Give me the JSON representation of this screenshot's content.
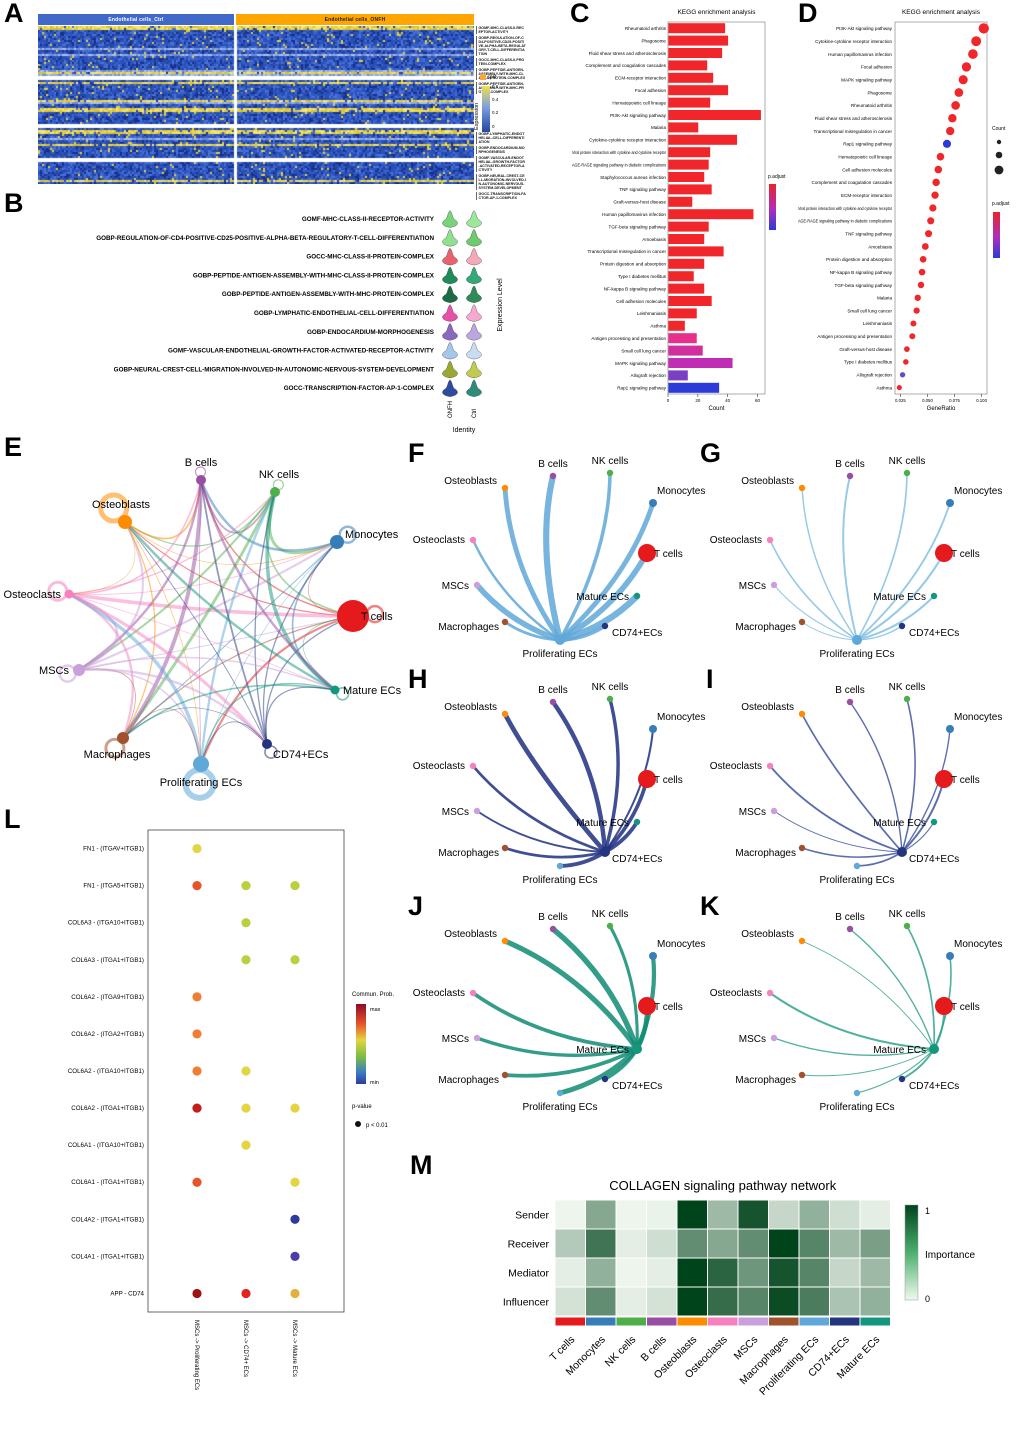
{
  "panel_labels": {
    "A": "A",
    "B": "B",
    "C": "C",
    "D": "D",
    "E": "E",
    "F": "F",
    "G": "G",
    "H": "H",
    "I": "I",
    "J": "J",
    "K": "K",
    "L": "L",
    "M": "M"
  },
  "cell_types": [
    {
      "name": "T cells",
      "color": "#E41A1C"
    },
    {
      "name": "Monocytes",
      "color": "#377EB8"
    },
    {
      "name": "NK cells",
      "color": "#4DAF4A"
    },
    {
      "name": "B cells",
      "color": "#984EA3"
    },
    {
      "name": "Osteoblasts",
      "color": "#FF8C00"
    },
    {
      "name": "Osteoclasts",
      "color": "#F781BF"
    },
    {
      "name": "MSCs",
      "color": "#C9A0DC"
    },
    {
      "name": "Macrophages",
      "color": "#A0522D"
    },
    {
      "name": "Proliferating ECs",
      "color": "#5FA8D8"
    },
    {
      "name": "CD74+ECs",
      "color": "#24357F"
    },
    {
      "name": "Mature ECs",
      "color": "#14967C"
    }
  ],
  "panels": {
    "A": {
      "headers": [
        {
          "label": "Endothelial cells_Ctrl",
          "color": "#4169C8",
          "text": "#FFFFFF"
        },
        {
          "label": "Endothelial cells_ONFH",
          "color": "#FFA500",
          "text": "#222222"
        }
      ],
      "legend": {
        "split": "split",
        "split_color": "#F5A93F",
        "expression": "Expression",
        "ticks": [
          "0.6",
          "0.4",
          "0.2",
          "0"
        ]
      },
      "genesets_top": [
        "GOMF-MHC-CLASS-II-RECEPTOR-ACTIVITY",
        "GOBP-REGULATION-OF-CD4-POSITIVE-CD25-POSITIVE-ALPHA-BETA-REGULATORY-T-CELL-DIFFERENTIATION",
        "GOCC-MHC-CLASS-II-PROTEIN-COMPLEX",
        "GOBP-PEPTIDE-ANTIGEN-ASSEMBLY-WITH-MHC-CLASS-II-PROTEIN-COMPLEX",
        "GOBP-PEPTIDE-ANTIGEN-ASSEMBLY-WITH-MHC-PROTEIN-COMPLEX"
      ],
      "genesets_bottom": [
        "GOBP-LYMPHATIC-ENDOTHELIAL-CELL-DIFFERENTIATION",
        "GOBP-ENDOCARDIUM-MORPHOGENESIS",
        "GOMF-VASCULAR-ENDOTHELIAL-GROWTH-FACTOR-ACTIVATED-RECEPTOR-ACTIVITY",
        "GOBP-NEURAL-CREST-CELL-MIGRATION-INVOLVED-IN-AUTONOMIC-NERVOUS-SYSTEM-DEVELOPMENT",
        "GOCC-TRANSCRIPTION-FACTOR-AP-1-COMPLEX"
      ]
    },
    "B": {
      "ylabel": "Expression Level",
      "xlabel": "Identity",
      "identities": [
        "ONFH",
        "Ctrl"
      ],
      "rows": [
        {
          "term": "GOMF-MHC-CLASS-II-RECEPTOR-ACTIVITY",
          "colors": [
            "#79D379",
            "#9BE89B"
          ]
        },
        {
          "term": "GOBP-REGULATION-OF-CD4-POSITIVE-CD25-POSITIVE-ALPHA-BETA-REGULATORY-T-CELL-DIFFERENTIATION",
          "colors": [
            "#8FE08F",
            "#6FC96F"
          ]
        },
        {
          "term": "GOCC-MHC-CLASS-II-PROTEIN-COMPLEX",
          "colors": [
            "#E8636E",
            "#F4A8B8"
          ]
        },
        {
          "term": "GOBP-PEPTIDE-ANTIGEN-ASSEMBLY-WITH-MHC-CLASS-II-PROTEIN-COMPLEX",
          "colors": [
            "#1F8A5A",
            "#34A878"
          ]
        },
        {
          "term": "GOBP-PEPTIDE-ANTIGEN-ASSEMBLY-WITH-MHC-PROTEIN-COMPLEX",
          "colors": [
            "#1A6B46",
            "#2E8B57"
          ]
        },
        {
          "term": "GOBP-LYMPHATIC-ENDOTHELIAL-CELL-DIFFERENTIATION",
          "colors": [
            "#E84FA8",
            "#F6A8D0"
          ]
        },
        {
          "term": "GOBP-ENDOCARDIUM-MORPHOGENESIS",
          "colors": [
            "#8A68C0",
            "#BCA6E0"
          ]
        },
        {
          "term": "GOMF-VASCULAR-ENDOTHELIAL-GROWTH-FACTOR-ACTIVATED-RECEPTOR-ACTIVITY",
          "colors": [
            "#A4C8E8",
            "#C8DCF2"
          ]
        },
        {
          "term": "GOBP-NEURAL-CREST-CELL-MIGRATION-INVOLVED-IN-AUTONOMIC-NERVOUS-SYSTEM-DEVELOPMENT",
          "colors": [
            "#9AA832",
            "#C0CC50"
          ]
        },
        {
          "term": "GOCC-TRANSCRIPTION-FACTOR-AP-1-COMPLEX",
          "colors": [
            "#2F4BA0",
            "#2E8B7A"
          ]
        }
      ]
    },
    "E": {
      "type": "network"
    },
    "F": {
      "hub": "Proliferating ECs",
      "color": "#5FA8D8",
      "weights": [
        2.5,
        6.5
      ]
    },
    "G": {
      "hub": "Proliferating ECs",
      "color": "#85C0E4",
      "weights": [
        0.9,
        2.2
      ]
    },
    "H": {
      "hub": "CD74+ECs",
      "color": "#1E2F80",
      "weights": [
        1.8,
        4.8
      ]
    },
    "I": {
      "hub": "CD74+ECs",
      "color": "#40549E",
      "weights": [
        0.9,
        2.0
      ]
    },
    "J": {
      "hub": "Mature ECs",
      "color": "#0F8C74",
      "weights": [
        2.2,
        5.5
      ]
    },
    "K": {
      "hub": "Mature ECs",
      "color": "#33A38C",
      "weights": [
        0.9,
        2.2
      ]
    }
  },
  "chart_data": [
    {
      "panel": "C",
      "type": "bar",
      "title": "KEGG enrichment analysis",
      "xlabel": "Count",
      "xticks": [
        0,
        20,
        40,
        60
      ],
      "xlim": [
        0,
        65
      ],
      "legend_title": "p.adjust",
      "bar_color": "#F0262A",
      "items": [
        {
          "label": "Rheumatoid arthritis",
          "value": 38
        },
        {
          "label": "Phagosome",
          "value": 40
        },
        {
          "label": "Fluid shear stress and atherosclerosis",
          "value": 36
        },
        {
          "label": "Complement and coagulation cascades",
          "value": 26
        },
        {
          "label": "ECM-receptor interaction",
          "value": 30
        },
        {
          "label": "Focal adhesion",
          "value": 40
        },
        {
          "label": "Hematopoietic cell lineage",
          "value": 28
        },
        {
          "label": "PI3K-Akt signaling pathway",
          "value": 62
        },
        {
          "label": "Malaria",
          "value": 20
        },
        {
          "label": "Cytokine-cytokine receptor interaction",
          "value": 46
        },
        {
          "label": "Viral protein interaction with cytokine and cytokine receptor",
          "value": 28
        },
        {
          "label": "AGE-RAGE signaling pathway in diabetic complications",
          "value": 27
        },
        {
          "label": "Staphylococcus aureus infection",
          "value": 24
        },
        {
          "label": "TNF signaling pathway",
          "value": 29
        },
        {
          "label": "Graft-versus-host disease",
          "value": 16
        },
        {
          "label": "Human papillomavirus infection",
          "value": 57
        },
        {
          "label": "TGF-beta signaling pathway",
          "value": 27
        },
        {
          "label": "Amoebiasis",
          "value": 24
        },
        {
          "label": "Transcriptional misregulation in cancer",
          "value": 37
        },
        {
          "label": "Protein digestion and absorption",
          "value": 24
        },
        {
          "label": "Type I diabetes mellitus",
          "value": 17
        },
        {
          "label": "NF-kappa B signaling pathway",
          "value": 24
        },
        {
          "label": "Cell adhesion molecules",
          "value": 29
        },
        {
          "label": "Leishmaniasis",
          "value": 19
        },
        {
          "label": "Asthma",
          "value": 11
        },
        {
          "label": "Antigen processing and presentation",
          "value": 19,
          "color": "#E8308A"
        },
        {
          "label": "Small cell lung cancer",
          "value": 23,
          "color": "#D12D9C"
        },
        {
          "label": "MAPK signaling pathway",
          "value": 43,
          "color": "#C02DB4"
        },
        {
          "label": "Allograft rejection",
          "value": 13,
          "color": "#7B3FC4"
        },
        {
          "label": "Rap1 signaling pathway",
          "value": 34,
          "color": "#2B3AD8"
        }
      ]
    },
    {
      "panel": "D",
      "type": "scatter",
      "title": "KEGG enrichment analysis",
      "xlabel": "GeneRatio",
      "xticks": [
        "0.025",
        "0.050",
        "0.075",
        "0.100"
      ],
      "legend_count_title": "Count",
      "legend_padjust_title": "p.adjust",
      "dot_color": "#F0262A",
      "items": [
        {
          "label": "PI3K-Akt signaling pathway",
          "generatio": 0.102,
          "count": 61
        },
        {
          "label": "Cytokine-cytokine receptor interaction",
          "generatio": 0.095,
          "count": 57
        },
        {
          "label": "Human papillomavirus infection",
          "generatio": 0.092,
          "count": 55
        },
        {
          "label": "Focal adhesion",
          "generatio": 0.086,
          "count": 52
        },
        {
          "label": "MAPK signaling pathway",
          "generatio": 0.083,
          "count": 50
        },
        {
          "label": "Phagosome",
          "generatio": 0.079,
          "count": 47
        },
        {
          "label": "Rheumatoid arthritis",
          "generatio": 0.076,
          "count": 46
        },
        {
          "label": "Fluid shear stress and atherosclerosis",
          "generatio": 0.073,
          "count": 44
        },
        {
          "label": "Transcriptional misregulation in cancer",
          "generatio": 0.071,
          "count": 43
        },
        {
          "label": "Rap1 signaling pathway",
          "generatio": 0.068,
          "count": 41,
          "color": "#2B3AD8"
        },
        {
          "label": "Hematopoietic cell lineage",
          "generatio": 0.062,
          "count": 37
        },
        {
          "label": "Cell adhesion molecules",
          "generatio": 0.06,
          "count": 36
        },
        {
          "label": "Complement and coagulation cascades",
          "generatio": 0.058,
          "count": 35
        },
        {
          "label": "ECM-receptor interaction",
          "generatio": 0.057,
          "count": 34
        },
        {
          "label": "Viral protein interaction with cytokine and cytokine receptor",
          "generatio": 0.055,
          "count": 33
        },
        {
          "label": "AGE-RAGE signaling pathway in diabetic complications",
          "generatio": 0.053,
          "count": 32
        },
        {
          "label": "TNF signaling pathway",
          "generatio": 0.051,
          "count": 31
        },
        {
          "label": "Amoebiasis",
          "generatio": 0.048,
          "count": 29
        },
        {
          "label": "Protein digestion and absorption",
          "generatio": 0.046,
          "count": 28
        },
        {
          "label": "NF-kappa B signaling pathway",
          "generatio": 0.045,
          "count": 27
        },
        {
          "label": "TGF-beta signaling pathway",
          "generatio": 0.044,
          "count": 26
        },
        {
          "label": "Malaria",
          "generatio": 0.041,
          "count": 25
        },
        {
          "label": "Small cell lung cancer",
          "generatio": 0.04,
          "count": 24
        },
        {
          "label": "Leishmaniasis",
          "generatio": 0.037,
          "count": 22
        },
        {
          "label": "Antigen processing and presentation",
          "generatio": 0.036,
          "count": 22
        },
        {
          "label": "Graft-versus-host disease",
          "generatio": 0.031,
          "count": 19
        },
        {
          "label": "Type I diabetes mellitus",
          "generatio": 0.03,
          "count": 18
        },
        {
          "label": "Allograft rejection",
          "generatio": 0.027,
          "count": 16,
          "color": "#6A48C8"
        },
        {
          "label": "Asthma",
          "generatio": 0.024,
          "count": 14
        }
      ]
    },
    {
      "panel": "L",
      "type": "dotplot",
      "rows": [
        "FN1 - (ITGAV+ITGB1)",
        "FN1 - (ITGA5+ITGB1)",
        "COL6A3 - (ITGA10+ITGB1)",
        "COL6A3 - (ITGA1+ITGB1)",
        "COL6A2 - (ITGA9+ITGB1)",
        "COL6A2 - (ITGA2+ITGB1)",
        "COL6A2 - (ITGA10+ITGB1)",
        "COL6A2 - (ITGA1+ITGB1)",
        "COL6A1 - (ITGA10+ITGB1)",
        "COL6A1 - (ITGA1+ITGB1)",
        "COL4A2 - (ITGA1+ITGB1)",
        "COL4A1 - (ITGA1+ITGB1)",
        "APP - CD74"
      ],
      "columns": [
        "MSCs -> Proliferating ECs",
        "MSCs -> CD74+ ECs",
        "MSCs -> Mature ECs"
      ],
      "colors": [
        [
          "#E2D541",
          null,
          null
        ],
        [
          "#E8542A",
          "#BCCF3E",
          "#BCCF3E"
        ],
        [
          null,
          "#BCCF3E",
          null
        ],
        [
          null,
          "#BCCF3E",
          "#BCCF3E"
        ],
        [
          "#EE7E32",
          null,
          null
        ],
        [
          "#EE7E32",
          null,
          null
        ],
        [
          "#EE7E32",
          "#E2D541",
          null
        ],
        [
          "#C41E1C",
          "#E2D541",
          "#E2D541"
        ],
        [
          null,
          "#E2D541",
          null
        ],
        [
          "#E8542A",
          null,
          "#E2D541"
        ],
        [
          null,
          null,
          "#2D3A9E"
        ],
        [
          null,
          null,
          "#4A3FA8"
        ],
        [
          "#9E1214",
          "#E02521",
          "#E2B03C"
        ]
      ],
      "legend": {
        "title": "Commun. Prob.",
        "max": "max",
        "min": "min",
        "pvalue": "p-value",
        "pvalue_label": "p < 0.01"
      }
    },
    {
      "panel": "M",
      "type": "heatmap",
      "title": "COLLAGEN signaling pathway network",
      "rows": [
        "Sender",
        "Receiver",
        "Mediator",
        "Influencer"
      ],
      "columns": [
        "T cells",
        "Monocytes",
        "NK cells",
        "B cells",
        "Osteoblasts",
        "Osteoclasts",
        "MSCs",
        "Macrophages",
        "Proliferating ECs",
        "CD74+ECs",
        "Mature ECs"
      ],
      "values": [
        [
          0.02,
          0.4,
          0.02,
          0.03,
          1.0,
          0.3,
          0.9,
          0.15,
          0.35,
          0.12,
          0.05
        ],
        [
          0.22,
          0.7,
          0.05,
          0.12,
          0.55,
          0.4,
          0.55,
          1.0,
          0.6,
          0.3,
          0.45
        ],
        [
          0.05,
          0.35,
          0.02,
          0.05,
          1.0,
          0.8,
          0.5,
          0.9,
          0.6,
          0.15,
          0.3
        ],
        [
          0.1,
          0.55,
          0.05,
          0.1,
          1.0,
          0.75,
          0.6,
          0.95,
          0.65,
          0.25,
          0.35
        ]
      ],
      "legend": {
        "title": "Importance",
        "max": "1",
        "min": "0"
      }
    }
  ]
}
